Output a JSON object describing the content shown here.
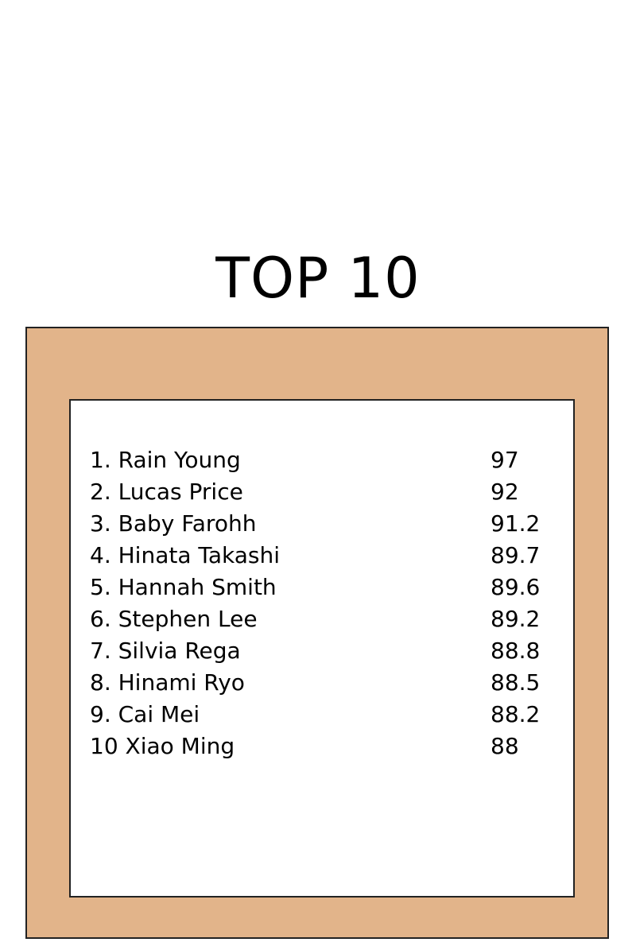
{
  "title": "TOP 10",
  "colors": {
    "frame": "#E2B48A",
    "panel": "#FFFFFF",
    "border": "#222222"
  },
  "leaderboard": [
    {
      "name": "1. Rain Young",
      "score": "97"
    },
    {
      "name": "2. Lucas Price",
      "score": "92"
    },
    {
      "name": "3. Baby Farohh",
      "score": "91.2"
    },
    {
      "name": "4. Hinata Takashi",
      "score": "89.7"
    },
    {
      "name": "5. Hannah Smith",
      "score": "89.6"
    },
    {
      "name": "6. Stephen Lee",
      "score": "89.2"
    },
    {
      "name": "7. Silvia Rega",
      "score": "88.8"
    },
    {
      "name": "8. Hinami Ryo",
      "score": "88.5"
    },
    {
      "name": "9. Cai Mei",
      "score": "88.2"
    },
    {
      "name": "10 Xiao Ming",
      "score": "88"
    }
  ]
}
